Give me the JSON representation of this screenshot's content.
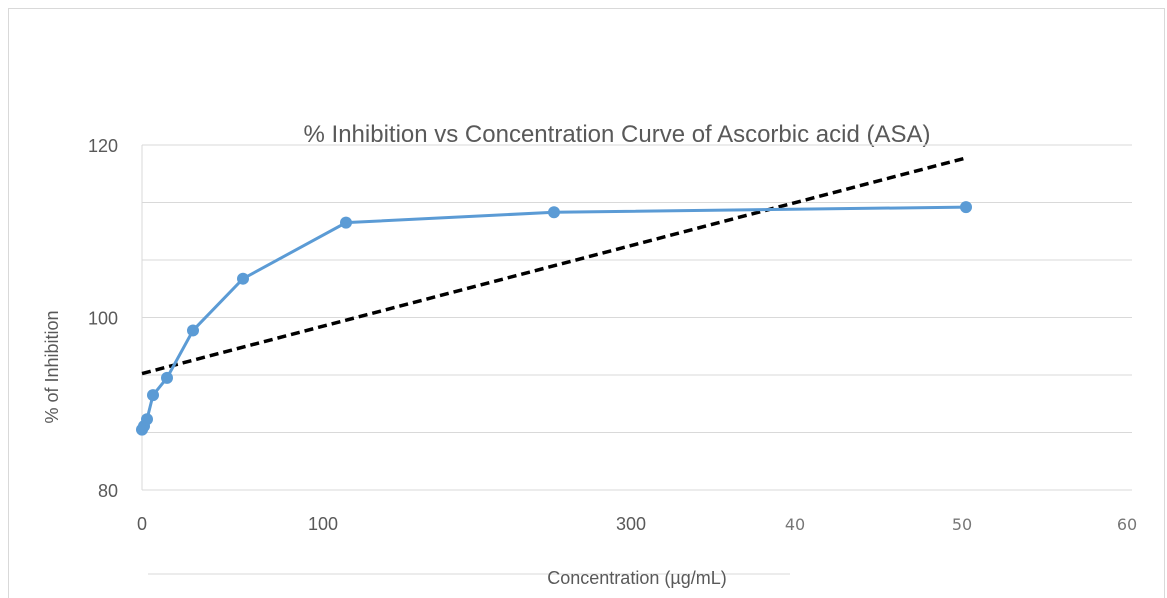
{
  "chart_data": {
    "type": "line",
    "title": "% Inhibition vs Concentration Curve of Ascorbic acid (ASA)",
    "xlabel": "Concentration (µg/mL)",
    "ylabel": "% of Inhibition",
    "x_tick_labels": [
      "0",
      "100",
      "300",
      "40",
      "50",
      "60"
    ],
    "y_tick_labels": [
      "80",
      "100",
      "120"
    ],
    "ylim": [
      80,
      120
    ],
    "y_gridlines": [
      80,
      86.67,
      93.33,
      100,
      106.67,
      113.33,
      120
    ],
    "xlim": [
      0,
      600
    ],
    "grid": true,
    "legend": "none",
    "series": [
      {
        "color": "#5b9bd5",
        "marker": "circle",
        "x": [
          0,
          1,
          3,
          6,
          15,
          30,
          60,
          125,
          250,
          500
        ],
        "y": [
          87,
          87.4,
          88.2,
          91,
          93,
          98.5,
          104.5,
          111,
          112.2,
          112.8
        ]
      }
    ],
    "trendline": {
      "style": "dashed",
      "color": "#000000",
      "x": [
        0,
        500
      ],
      "y": [
        93.5,
        118.5
      ]
    }
  }
}
